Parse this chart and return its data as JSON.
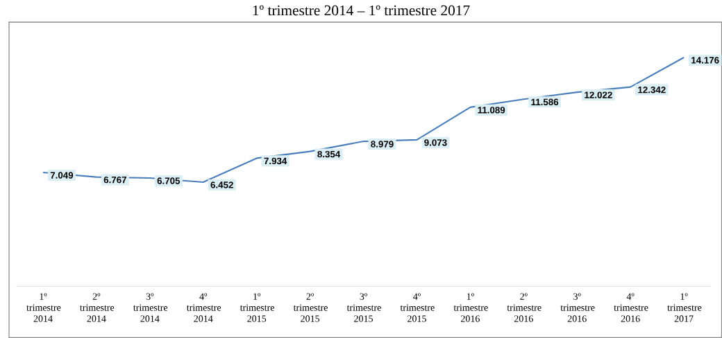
{
  "chart_data": {
    "type": "line",
    "title": "1º trimestre 2014 – 1º trimestre 2017",
    "categories": [
      "1º trimestre 2014",
      "2º trimestre 2014",
      "3º trimestre 2014",
      "4º trimestre 2014",
      "1º trimestre 2015",
      "2º trimestre 2015",
      "3º trimestre 2015",
      "4º trimestre 2015",
      "1º trimestre 2016",
      "2º trimestre 2016",
      "3º trimestre 2016",
      "4º trimestre 2016",
      "1º trimestre 2017"
    ],
    "values": [
      7049,
      6767,
      6705,
      6452,
      7934,
      8354,
      8979,
      9073,
      11089,
      11586,
      12022,
      12342,
      14176
    ],
    "value_labels": [
      "7.049",
      "6.767",
      "6.705",
      "6.452",
      "7.934",
      "8.354",
      "8.979",
      "9.073",
      "11.089",
      "11.586",
      "12.022",
      "12.342",
      "14.176"
    ],
    "color": "#4a7ebb",
    "marker": "none",
    "line_style": "solid"
  }
}
